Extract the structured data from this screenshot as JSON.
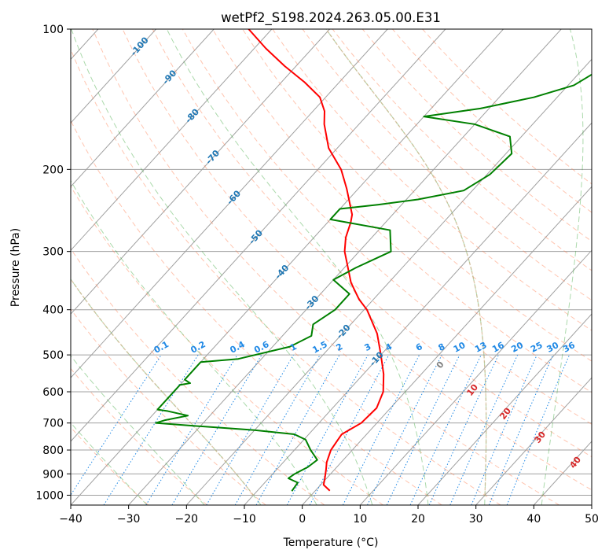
{
  "chart_data": {
    "type": "line",
    "title": "wetPf2_S198.2024.263.05.00.E31",
    "xlabel": "Temperature (°C)",
    "ylabel": "Pressure (hPa)",
    "xlim": [
      -40,
      50
    ],
    "ylim": [
      1050,
      100
    ],
    "y_scale": "log",
    "x_ticks": [
      "−40",
      "−30",
      "−20",
      "−10",
      "0",
      "10",
      "20",
      "30",
      "40",
      "50"
    ],
    "y_ticks": [
      "100",
      "200",
      "300",
      "400",
      "500",
      "600",
      "700",
      "800",
      "900",
      "1000"
    ],
    "grid": true,
    "series": [
      {
        "name": "",
        "role": "temperature",
        "color": "#ff0000",
        "points": [
          {
            "p": 978,
            "t": 2.5
          },
          {
            "p": 950,
            "t": 0.5
          },
          {
            "p": 920,
            "t": -0.3
          },
          {
            "p": 880,
            "t": -1.5
          },
          {
            "p": 850,
            "t": -2.5
          },
          {
            "p": 800,
            "t": -3.7
          },
          {
            "p": 760,
            "t": -4.1
          },
          {
            "p": 740,
            "t": -4.3
          },
          {
            "p": 720,
            "t": -3.5
          },
          {
            "p": 700,
            "t": -2.7
          },
          {
            "p": 650,
            "t": -2.4
          },
          {
            "p": 600,
            "t": -3.8
          },
          {
            "p": 550,
            "t": -6.5
          },
          {
            "p": 500,
            "t": -10
          },
          {
            "p": 450,
            "t": -14
          },
          {
            "p": 400,
            "t": -19.5
          },
          {
            "p": 380,
            "t": -22.5
          },
          {
            "p": 350,
            "t": -26.5
          },
          {
            "p": 300,
            "t": -32.5
          },
          {
            "p": 280,
            "t": -34.5
          },
          {
            "p": 260,
            "t": -36
          },
          {
            "p": 250,
            "t": -37
          },
          {
            "p": 240,
            "t": -38.6
          },
          {
            "p": 220,
            "t": -42
          },
          {
            "p": 200,
            "t": -46
          },
          {
            "p": 180,
            "t": -51.5
          },
          {
            "p": 160,
            "t": -56
          },
          {
            "p": 150,
            "t": -58
          },
          {
            "p": 140,
            "t": -61
          },
          {
            "p": 130,
            "t": -66
          },
          {
            "p": 120,
            "t": -72
          },
          {
            "p": 110,
            "t": -78
          },
          {
            "p": 100,
            "t": -84
          }
        ]
      },
      {
        "name": "",
        "role": "profile",
        "color": "#008000",
        "points": [
          {
            "p": 980,
            "t": -4
          },
          {
            "p": 940,
            "t": -4.3
          },
          {
            "p": 920,
            "t": -6.6
          },
          {
            "p": 900,
            "t": -6.2
          },
          {
            "p": 870,
            "t": -5
          },
          {
            "p": 840,
            "t": -4.5
          },
          {
            "p": 800,
            "t": -7.2
          },
          {
            "p": 760,
            "t": -9.7
          },
          {
            "p": 740,
            "t": -12.5
          },
          {
            "p": 725,
            "t": -20
          },
          {
            "p": 710,
            "t": -31
          },
          {
            "p": 700,
            "t": -38.2
          },
          {
            "p": 690,
            "t": -37
          },
          {
            "p": 675,
            "t": -33.8
          },
          {
            "p": 660,
            "t": -38
          },
          {
            "p": 655,
            "t": -40
          },
          {
            "p": 580,
            "t": -40
          },
          {
            "p": 575,
            "t": -38.5
          },
          {
            "p": 565,
            "t": -40
          },
          {
            "p": 518,
            "t": -40
          },
          {
            "p": 510,
            "t": -34
          },
          {
            "p": 480,
            "t": -27
          },
          {
            "p": 455,
            "t": -25
          },
          {
            "p": 430,
            "t": -26.5
          },
          {
            "p": 400,
            "t": -25
          },
          {
            "p": 370,
            "t": -25
          },
          {
            "p": 345,
            "t": -30
          },
          {
            "p": 325,
            "t": -28
          },
          {
            "p": 300,
            "t": -24.5
          },
          {
            "p": 270,
            "t": -28
          },
          {
            "p": 256,
            "t": -40
          },
          {
            "p": 243,
            "t": -40
          },
          {
            "p": 238,
            "t": -34
          },
          {
            "p": 232,
            "t": -28
          },
          {
            "p": 222,
            "t": -21.5
          },
          {
            "p": 205,
            "t": -19.5
          },
          {
            "p": 185,
            "t": -19
          },
          {
            "p": 170,
            "t": -22
          },
          {
            "p": 160,
            "t": -30
          },
          {
            "p": 154,
            "t": -40
          },
          {
            "p": 148,
            "t": -31.5
          },
          {
            "p": 140,
            "t": -24
          },
          {
            "p": 132,
            "t": -19
          },
          {
            "p": 120,
            "t": -16.5
          },
          {
            "p": 110,
            "t": -14.5
          },
          {
            "p": 100,
            "t": -11.5
          }
        ]
      }
    ],
    "dry_adiabats": [
      -30,
      -20,
      -10,
      0,
      10,
      20,
      30,
      40,
      50,
      60,
      70,
      80,
      90,
      100,
      110,
      120,
      130,
      140,
      150
    ],
    "moist_adiabats": [
      -30,
      -20,
      -10,
      0,
      10,
      20,
      30,
      40
    ],
    "mixing_ratio_labels": [
      "0.1",
      "0.2",
      "0.4",
      "0.6",
      "1",
      "1.5",
      "2",
      "3",
      "4",
      "6",
      "8",
      "10",
      "13",
      "16",
      "20",
      "25",
      "30",
      "36"
    ],
    "isotherm_labels": [
      "-100",
      "-90",
      "-80",
      "-70",
      "-60",
      "-50",
      "-40",
      "-30",
      "-20",
      "-10"
    ],
    "wet_bulb_labels": [
      "0",
      "10",
      "20",
      "30",
      "40"
    ],
    "colors": {
      "temperature": "#ff0000",
      "profile": "#008000",
      "isotherm_label": "#1f77b4",
      "mixing_ratio": "#1e88e5",
      "wet_bulb_label": "#d62728",
      "dry_adiabat": "#ff7f50",
      "moist_adiabat": "#2ca02c",
      "skew_grid": "#a0a0a0",
      "wet_bulb_curve": "#d2b48c"
    }
  }
}
